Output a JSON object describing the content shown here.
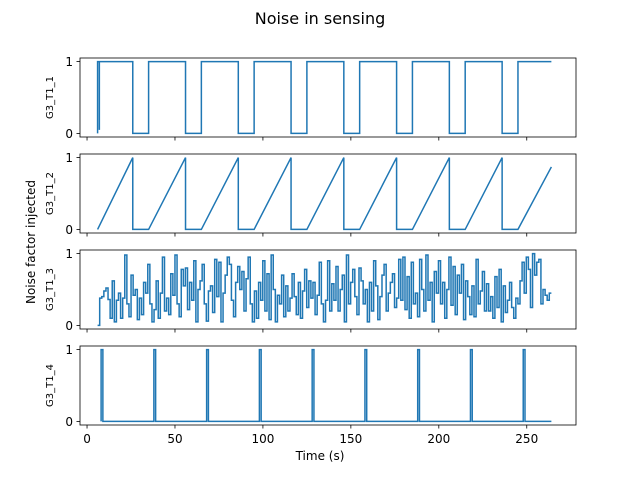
{
  "chart_data": {
    "type": "line",
    "title": "Noise in sensing",
    "xlabel": "Time (s)",
    "ylabel": "Noise factor injected",
    "xlim": [
      -4,
      278
    ],
    "xticks": [
      0,
      50,
      100,
      150,
      200,
      250
    ],
    "color": "#1f77b4",
    "subplots": [
      {
        "name": "G3_T1_1",
        "ylabel": "G3_T1_1",
        "ylim": [
          -0.05,
          1.05
        ],
        "yticks": [
          0,
          1
        ],
        "kind": "step",
        "points": [
          [
            6,
            0
          ],
          [
            6,
            1
          ],
          [
            7,
            1
          ],
          [
            7,
            0.05
          ],
          [
            7,
            1
          ],
          [
            26,
            1
          ],
          [
            26,
            0
          ],
          [
            35,
            0
          ],
          [
            35,
            1
          ],
          [
            56,
            1
          ],
          [
            56,
            0
          ],
          [
            65,
            0
          ],
          [
            65,
            1
          ],
          [
            86,
            1
          ],
          [
            86,
            0
          ],
          [
            95,
            0
          ],
          [
            95,
            1
          ],
          [
            116,
            1
          ],
          [
            116,
            0
          ],
          [
            125,
            0
          ],
          [
            125,
            1
          ],
          [
            146,
            1
          ],
          [
            146,
            0
          ],
          [
            155,
            0
          ],
          [
            155,
            1
          ],
          [
            176,
            1
          ],
          [
            176,
            0
          ],
          [
            185,
            0
          ],
          [
            185,
            1
          ],
          [
            206,
            1
          ],
          [
            206,
            0
          ],
          [
            215,
            0
          ],
          [
            215,
            1
          ],
          [
            236,
            1
          ],
          [
            236,
            0
          ],
          [
            245,
            0
          ],
          [
            245,
            1
          ],
          [
            264,
            1
          ]
        ]
      },
      {
        "name": "G3_T1_2",
        "ylabel": "G3_T1_2",
        "ylim": [
          -0.05,
          1.05
        ],
        "yticks": [
          0,
          1
        ],
        "kind": "sawtooth",
        "points": [
          [
            6,
            0
          ],
          [
            26,
            1
          ],
          [
            26,
            0
          ],
          [
            35,
            0
          ],
          [
            56,
            1
          ],
          [
            56,
            0
          ],
          [
            65,
            0
          ],
          [
            86,
            1
          ],
          [
            86,
            0
          ],
          [
            95,
            0
          ],
          [
            116,
            1
          ],
          [
            116,
            0
          ],
          [
            125,
            0
          ],
          [
            146,
            1
          ],
          [
            146,
            0
          ],
          [
            155,
            0
          ],
          [
            176,
            1
          ],
          [
            176,
            0
          ],
          [
            185,
            0
          ],
          [
            206,
            1
          ],
          [
            206,
            0
          ],
          [
            215,
            0
          ],
          [
            236,
            1
          ],
          [
            236,
            0
          ],
          [
            245,
            0
          ],
          [
            264,
            0.87
          ]
        ]
      },
      {
        "name": "G3_T1_3",
        "ylabel": "G3_T1_3",
        "ylim": [
          -0.05,
          1.05
        ],
        "yticks": [
          0,
          1
        ],
        "kind": "random-step",
        "x_start": 6,
        "x_end": 264,
        "values": [
          0.0,
          0.38,
          0.4,
          0.48,
          0.52,
          0.36,
          0.1,
          0.62,
          0.05,
          0.35,
          0.45,
          0.1,
          0.38,
          0.98,
          0.3,
          0.12,
          0.7,
          0.42,
          0.5,
          0.08,
          0.38,
          0.15,
          0.6,
          0.45,
          0.85,
          0.3,
          0.05,
          0.22,
          0.62,
          0.1,
          0.45,
          0.95,
          0.2,
          0.38,
          0.15,
          0.72,
          0.42,
          0.98,
          0.3,
          0.12,
          0.78,
          0.55,
          0.8,
          0.22,
          0.6,
          0.35,
          0.9,
          0.05,
          0.5,
          0.62,
          0.85,
          0.3,
          0.06,
          0.48,
          0.55,
          0.18,
          0.92,
          0.4,
          0.88,
          0.05,
          0.45,
          0.7,
          0.95,
          0.85,
          0.35,
          0.12,
          0.6,
          0.82,
          0.5,
          0.75,
          0.2,
          0.65,
          0.95,
          0.3,
          0.05,
          0.48,
          0.1,
          0.6,
          0.35,
          0.9,
          0.2,
          0.72,
          0.08,
          0.98,
          0.5,
          0.05,
          0.42,
          0.3,
          0.7,
          0.12,
          0.55,
          0.2,
          0.38,
          0.72,
          0.4,
          0.15,
          0.6,
          0.1,
          0.48,
          0.78,
          0.25,
          0.62,
          0.38,
          0.6,
          0.15,
          0.42,
          0.88,
          0.3,
          0.05,
          0.35,
          0.9,
          0.2,
          0.58,
          0.35,
          0.82,
          0.2,
          0.5,
          0.7,
          0.05,
          0.98,
          0.3,
          0.6,
          0.78,
          0.4,
          0.15,
          0.8,
          0.62,
          0.3,
          0.5,
          0.05,
          0.6,
          0.2,
          0.9,
          0.55,
          0.08,
          0.4,
          0.7,
          0.85,
          0.2,
          0.45,
          0.6,
          0.72,
          0.25,
          0.38,
          0.92,
          0.35,
          0.95,
          0.22,
          0.68,
          0.1,
          0.88,
          0.3,
          0.45,
          0.12,
          0.92,
          0.5,
          0.2,
          0.98,
          0.35,
          0.6,
          0.05,
          0.75,
          0.45,
          0.9,
          0.3,
          0.6,
          0.1,
          0.5,
          0.95,
          0.28,
          0.82,
          0.15,
          0.7,
          0.45,
          0.85,
          0.08,
          0.62,
          0.4,
          0.15,
          0.55,
          0.12,
          0.92,
          0.3,
          0.48,
          0.75,
          0.2,
          0.58,
          0.2,
          0.4,
          0.1,
          0.68,
          0.25,
          0.78,
          0.05,
          0.55,
          0.18,
          0.35,
          0.6,
          0.25,
          0.1,
          0.38,
          0.3,
          0.62,
          0.88,
          0.45,
          0.95,
          0.78,
          0.25,
          1.0,
          0.7,
          0.88,
          0.92,
          0.3,
          0.5,
          0.42,
          0.35,
          0.45
        ]
      },
      {
        "name": "G3_T1_4",
        "ylabel": "G3_T1_4",
        "ylim": [
          -0.05,
          1.05
        ],
        "yticks": [
          0,
          1
        ],
        "kind": "pulses",
        "x_start": 8,
        "x_end": 264,
        "pulses": [
          {
            "start": 8,
            "end": 9
          },
          {
            "start": 38,
            "end": 39
          },
          {
            "start": 68,
            "end": 69
          },
          {
            "start": 98,
            "end": 99
          },
          {
            "start": 128,
            "end": 129
          },
          {
            "start": 158,
            "end": 159
          },
          {
            "start": 188,
            "end": 189
          },
          {
            "start": 218,
            "end": 219
          },
          {
            "start": 248,
            "end": 249
          }
        ]
      }
    ]
  }
}
